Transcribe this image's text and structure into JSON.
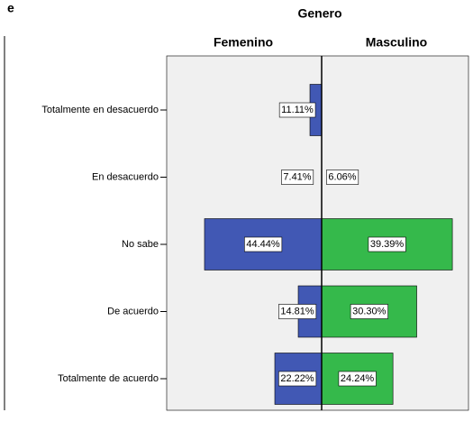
{
  "chart_data": {
    "type": "pyramid",
    "title": "Genero",
    "fragment_label": "e",
    "categories": [
      "Totalmente en desacuerdo",
      "En desacuerdo",
      "No sabe",
      "De acuerdo",
      "Totalmente de acuerdo"
    ],
    "series": [
      {
        "name": "Femenino",
        "color": "#4158b4",
        "side": "left",
        "xlim": [
          7.41,
          56.4
        ],
        "values": [
          11.11,
          7.41,
          44.44,
          14.81,
          22.22
        ],
        "value_labels": [
          "11.11%",
          "7.41%",
          "44.44%",
          "14.81%",
          "22.22%"
        ]
      },
      {
        "name": "Masculino",
        "color": "#35b94b",
        "side": "right",
        "xlim": [
          6.06,
          43.5
        ],
        "values": [
          null,
          6.06,
          39.39,
          30.3,
          24.24
        ],
        "value_labels": [
          null,
          "6.06%",
          "39.39%",
          "30.30%",
          "24.24%"
        ]
      }
    ]
  }
}
